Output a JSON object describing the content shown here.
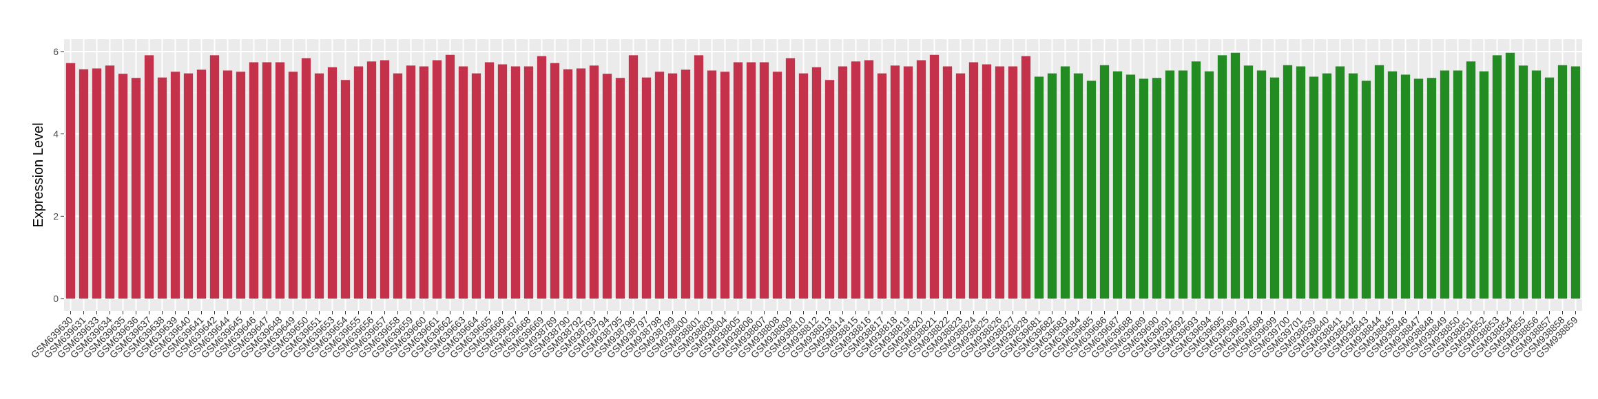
{
  "chart_data": {
    "type": "bar",
    "title": "",
    "xlabel": "",
    "ylabel": "Expression Level",
    "ylim": [
      -0.3,
      6.3
    ],
    "yticks": [
      0,
      2,
      4,
      6
    ],
    "grid": true,
    "legend": "none",
    "background": "#EBEBEB",
    "groups": [
      {
        "color": "#C3314A",
        "categories": [
          "GSM639630",
          "GSM639631",
          "GSM639633",
          "GSM639634",
          "GSM639635",
          "GSM639636",
          "GSM639637",
          "GSM639638",
          "GSM639639",
          "GSM639640",
          "GSM639641",
          "GSM639642",
          "GSM639644",
          "GSM639645",
          "GSM639646",
          "GSM639647",
          "GSM639648",
          "GSM639649",
          "GSM639650",
          "GSM639651",
          "GSM639653",
          "GSM639654",
          "GSM639655",
          "GSM639656",
          "GSM639657",
          "GSM639658",
          "GSM639659",
          "GSM639660",
          "GSM639661",
          "GSM639662",
          "GSM639663",
          "GSM639664",
          "GSM639665",
          "GSM639666",
          "GSM639667",
          "GSM639668",
          "GSM639669",
          "GSM938789",
          "GSM938790",
          "GSM938792",
          "GSM938793",
          "GSM938794",
          "GSM938795",
          "GSM938796",
          "GSM938797",
          "GSM938798",
          "GSM938799",
          "GSM938800",
          "GSM938801",
          "GSM938803",
          "GSM938804",
          "GSM938805",
          "GSM938806",
          "GSM938807",
          "GSM938808",
          "GSM938809",
          "GSM938810",
          "GSM938812",
          "GSM938813",
          "GSM938814",
          "GSM938815",
          "GSM938816",
          "GSM938817",
          "GSM938818",
          "GSM938819",
          "GSM938820",
          "GSM938821",
          "GSM938822",
          "GSM938823",
          "GSM938824",
          "GSM938825",
          "GSM938826",
          "GSM938827",
          "GSM938828"
        ],
        "values": [
          5.72,
          5.57,
          5.59,
          5.66,
          5.46,
          5.36,
          5.91,
          5.37,
          5.51,
          5.47,
          5.56,
          5.91,
          5.54,
          5.51,
          5.74,
          5.74,
          5.74,
          5.51,
          5.84,
          5.47,
          5.62,
          5.31,
          5.64,
          5.76,
          5.79,
          5.47,
          5.66,
          5.64,
          5.79,
          5.92,
          5.64,
          5.47,
          5.74,
          5.69,
          5.64,
          5.64,
          5.89,
          5.72,
          5.57,
          5.59,
          5.66,
          5.46,
          5.36,
          5.91,
          5.37,
          5.51,
          5.47,
          5.56,
          5.91,
          5.54,
          5.51,
          5.74,
          5.74,
          5.74,
          5.51,
          5.84,
          5.47,
          5.62,
          5.31,
          5.64,
          5.76,
          5.79,
          5.47,
          5.66,
          5.64,
          5.79,
          5.92,
          5.64,
          5.47,
          5.74,
          5.69,
          5.64,
          5.64,
          5.89
        ]
      },
      {
        "color": "#228B22",
        "categories": [
          "GSM639681",
          "GSM639682",
          "GSM639683",
          "GSM639684",
          "GSM639685",
          "GSM639686",
          "GSM639687",
          "GSM639688",
          "GSM639689",
          "GSM639690",
          "GSM639691",
          "GSM639692",
          "GSM639693",
          "GSM639694",
          "GSM639695",
          "GSM639696",
          "GSM639697",
          "GSM639698",
          "GSM639699",
          "GSM639700",
          "GSM639701",
          "GSM938839",
          "GSM938840",
          "GSM938841",
          "GSM938842",
          "GSM938843",
          "GSM938844",
          "GSM938845",
          "GSM938846",
          "GSM938847",
          "GSM938848",
          "GSM938849",
          "GSM938850",
          "GSM938851",
          "GSM938852",
          "GSM938853",
          "GSM938854",
          "GSM938855",
          "GSM938856",
          "GSM938857",
          "GSM938858",
          "GSM938859"
        ],
        "values": [
          5.39,
          5.47,
          5.64,
          5.47,
          5.29,
          5.67,
          5.52,
          5.44,
          5.34,
          5.36,
          5.54,
          5.54,
          5.76,
          5.52,
          5.91,
          5.97,
          5.66,
          5.54,
          5.37,
          5.67,
          5.64,
          5.39,
          5.47,
          5.64,
          5.47,
          5.29,
          5.67,
          5.52,
          5.44,
          5.34,
          5.36,
          5.54,
          5.54,
          5.76,
          5.52,
          5.91,
          5.97,
          5.66,
          5.54,
          5.37,
          5.67,
          5.64
        ]
      }
    ]
  }
}
